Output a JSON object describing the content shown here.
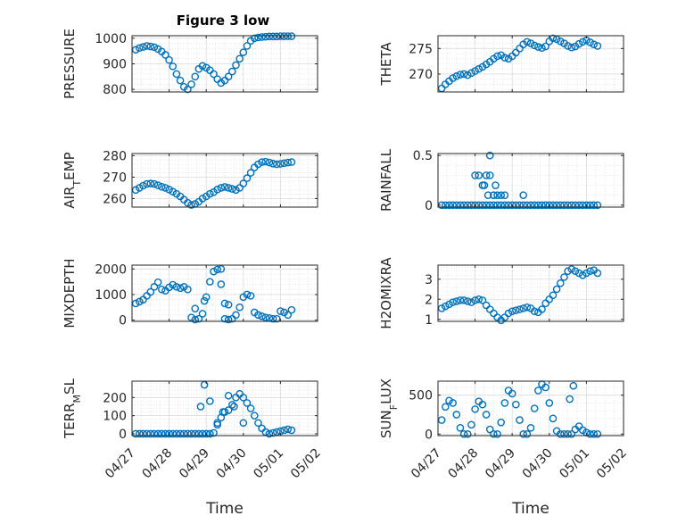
{
  "figure": {
    "title": "Figure 3 low",
    "marker_color": "#0072BD",
    "x_tick_labels": [
      "04/27",
      "04/28",
      "04/29",
      "04/30",
      "05/01",
      "05/02"
    ],
    "x_label": "Time"
  },
  "chart_data": [
    {
      "type": "scatter",
      "ylabel": "PRESSURE",
      "ylim": [
        790,
        1010
      ],
      "yticks": [
        800,
        900,
        1000
      ],
      "xlim": [
        0,
        5
      ],
      "grid": true,
      "minor_grid": true,
      "x_values_unit": "days since 04/27",
      "x": [
        0.1,
        0.2,
        0.3,
        0.4,
        0.5,
        0.6,
        0.7,
        0.8,
        0.9,
        1.0,
        1.1,
        1.2,
        1.3,
        1.4,
        1.5,
        1.6,
        1.7,
        1.8,
        1.9,
        2.0,
        2.1,
        2.2,
        2.3,
        2.4,
        2.5,
        2.6,
        2.7,
        2.8,
        2.9,
        3.0,
        3.1,
        3.2,
        3.3,
        3.4,
        3.5,
        3.6,
        3.7,
        3.8,
        3.9,
        4.0,
        4.1,
        4.2,
        4.3
      ],
      "y": [
        955,
        962,
        966,
        970,
        968,
        965,
        958,
        948,
        935,
        915,
        890,
        860,
        835,
        810,
        800,
        820,
        850,
        880,
        892,
        885,
        875,
        860,
        840,
        825,
        835,
        850,
        870,
        895,
        920,
        945,
        970,
        990,
        1000,
        1003,
        1005,
        1006,
        1007,
        1007,
        1007,
        1008,
        1008,
        1008,
        1008
      ]
    },
    {
      "type": "scatter",
      "ylabel": "THETA",
      "ylim": [
        266.5,
        277.5
      ],
      "yticks": [
        270,
        275
      ],
      "xlim": [
        0,
        5
      ],
      "grid": true,
      "minor_grid": true,
      "x": [
        0.1,
        0.2,
        0.3,
        0.4,
        0.5,
        0.6,
        0.7,
        0.8,
        0.9,
        1.0,
        1.1,
        1.2,
        1.3,
        1.4,
        1.5,
        1.6,
        1.7,
        1.8,
        1.9,
        2.0,
        2.1,
        2.2,
        2.3,
        2.4,
        2.5,
        2.6,
        2.7,
        2.8,
        2.9,
        3.0,
        3.1,
        3.2,
        3.3,
        3.4,
        3.5,
        3.6,
        3.7,
        3.8,
        3.9,
        4.0,
        4.1,
        4.2,
        4.3
      ],
      "y": [
        267.2,
        268.0,
        268.6,
        269.2,
        269.6,
        269.9,
        270.0,
        269.8,
        270.2,
        270.6,
        271.0,
        271.4,
        271.9,
        272.4,
        273.0,
        273.5,
        273.7,
        273.2,
        273.0,
        273.5,
        274.2,
        275.0,
        275.8,
        276.3,
        276.0,
        275.6,
        275.3,
        275.1,
        275.4,
        276.4,
        277.0,
        276.8,
        276.4,
        276.0,
        275.5,
        275.2,
        275.4,
        275.9,
        276.3,
        276.6,
        276.2,
        275.8,
        275.5
      ]
    },
    {
      "type": "scatter",
      "ylabel": "AIR_TEMP",
      "ylim": [
        256,
        281
      ],
      "yticks": [
        260,
        270,
        280
      ],
      "xlim": [
        0,
        5
      ],
      "grid": true,
      "minor_grid": true,
      "x": [
        0.1,
        0.2,
        0.3,
        0.4,
        0.5,
        0.6,
        0.7,
        0.8,
        0.9,
        1.0,
        1.1,
        1.2,
        1.3,
        1.4,
        1.5,
        1.6,
        1.7,
        1.8,
        1.9,
        2.0,
        2.1,
        2.2,
        2.3,
        2.4,
        2.5,
        2.6,
        2.7,
        2.8,
        2.9,
        3.0,
        3.1,
        3.2,
        3.3,
        3.4,
        3.5,
        3.6,
        3.7,
        3.8,
        3.9,
        4.0,
        4.1,
        4.2,
        4.3
      ],
      "y": [
        264,
        265,
        266,
        266.8,
        267,
        266.8,
        266.2,
        265.5,
        265,
        264.2,
        263.2,
        262.2,
        261,
        259.5,
        258,
        257,
        257.5,
        258.5,
        260,
        261,
        262.2,
        263,
        264.2,
        265,
        265.4,
        265,
        264.5,
        264,
        265,
        267,
        269.5,
        272,
        274.5,
        276,
        277,
        277.2,
        276.8,
        276.3,
        276,
        276.2,
        276.5,
        276.8,
        277
      ]
    },
    {
      "type": "scatter",
      "ylabel": "RAINFALL",
      "ylim": [
        -0.02,
        0.52
      ],
      "yticks": [
        0,
        0.5
      ],
      "xlim": [
        0,
        5
      ],
      "grid": true,
      "minor_grid": true,
      "x": [
        0.1,
        0.2,
        0.3,
        0.4,
        0.5,
        0.6,
        0.7,
        0.8,
        0.9,
        1.0,
        1.1,
        1.2,
        1.3,
        1.4,
        1.5,
        1.6,
        1.7,
        1.8,
        1.9,
        2.0,
        2.1,
        2.2,
        2.3,
        2.4,
        2.5,
        2.6,
        2.7,
        2.8,
        2.9,
        3.0,
        3.1,
        3.2,
        3.3,
        3.4,
        3.5,
        3.6,
        3.7,
        3.8,
        3.9,
        4.0,
        4.1,
        4.2,
        4.3,
        1.0,
        1.1,
        1.2,
        1.3,
        1.4,
        1.5,
        1.6,
        1.7,
        1.8,
        1.25,
        1.4,
        1.55,
        1.35,
        1.5,
        2.3
      ],
      "y": [
        0,
        0,
        0,
        0,
        0,
        0,
        0,
        0,
        0,
        0,
        0,
        0,
        0,
        0,
        0,
        0,
        0,
        0,
        0,
        0,
        0,
        0,
        0,
        0,
        0,
        0,
        0,
        0,
        0,
        0,
        0,
        0,
        0,
        0,
        0,
        0,
        0,
        0,
        0,
        0,
        0,
        0,
        0,
        0.3,
        0.3,
        0.2,
        0.3,
        0.5,
        0.1,
        0.1,
        0.1,
        0.1,
        0.2,
        0.3,
        0.2,
        0.1,
        0.1,
        0.1
      ]
    },
    {
      "type": "scatter",
      "ylabel": "MIXDEPTH",
      "ylim": [
        -50,
        2150
      ],
      "yticks": [
        0,
        1000,
        2000
      ],
      "xlim": [
        0,
        5
      ],
      "grid": true,
      "minor_grid": true,
      "x": [
        0.1,
        0.2,
        0.3,
        0.4,
        0.5,
        0.6,
        0.7,
        0.8,
        0.9,
        1.0,
        1.1,
        1.2,
        1.3,
        1.4,
        1.5,
        1.6,
        1.7,
        1.8,
        1.9,
        2.0,
        2.1,
        2.2,
        2.3,
        2.4,
        2.5,
        2.6,
        2.7,
        2.8,
        2.9,
        3.0,
        3.1,
        3.2,
        3.3,
        3.4,
        3.5,
        3.6,
        3.7,
        3.8,
        3.9,
        4.0,
        4.1,
        4.2,
        4.3,
        1.7,
        1.95,
        2.4,
        2.5,
        2.6
      ],
      "y": [
        650,
        720,
        800,
        950,
        1100,
        1300,
        1480,
        1200,
        1150,
        1280,
        1380,
        1300,
        1250,
        1300,
        1200,
        100,
        20,
        50,
        250,
        900,
        1500,
        1900,
        1980,
        2000,
        50,
        20,
        50,
        200,
        500,
        900,
        1000,
        950,
        300,
        200,
        150,
        100,
        80,
        50,
        50,
        350,
        300,
        200,
        400,
        450,
        750,
        1400,
        650,
        600
      ]
    },
    {
      "type": "scatter",
      "ylabel": "H2OMIXRA",
      "ylim": [
        0.9,
        3.7
      ],
      "yticks": [
        1,
        2,
        3
      ],
      "xlim": [
        0,
        5
      ],
      "grid": true,
      "minor_grid": true,
      "x": [
        0.1,
        0.2,
        0.3,
        0.4,
        0.5,
        0.6,
        0.7,
        0.8,
        0.9,
        1.0,
        1.1,
        1.2,
        1.3,
        1.4,
        1.5,
        1.6,
        1.7,
        1.8,
        1.9,
        2.0,
        2.1,
        2.2,
        2.3,
        2.4,
        2.5,
        2.6,
        2.7,
        2.8,
        2.9,
        3.0,
        3.1,
        3.2,
        3.3,
        3.4,
        3.5,
        3.6,
        3.7,
        3.8,
        3.9,
        4.0,
        4.1,
        4.2,
        4.3
      ],
      "y": [
        1.55,
        1.65,
        1.75,
        1.85,
        1.9,
        1.95,
        1.95,
        1.9,
        1.85,
        1.95,
        2.0,
        1.95,
        1.7,
        1.5,
        1.3,
        1.1,
        0.95,
        1.1,
        1.3,
        1.4,
        1.45,
        1.5,
        1.55,
        1.6,
        1.55,
        1.4,
        1.35,
        1.5,
        1.8,
        2.0,
        2.2,
        2.5,
        2.8,
        3.1,
        3.4,
        3.5,
        3.4,
        3.3,
        3.2,
        3.3,
        3.4,
        3.45,
        3.3
      ]
    },
    {
      "type": "scatter",
      "ylabel": "TERR_MSL",
      "ylim": [
        -10,
        290
      ],
      "yticks": [
        0,
        100,
        200
      ],
      "xlim": [
        0,
        5
      ],
      "grid": true,
      "minor_grid": true,
      "x": [
        0.1,
        0.2,
        0.3,
        0.4,
        0.5,
        0.6,
        0.7,
        0.8,
        0.9,
        1.0,
        1.1,
        1.2,
        1.3,
        1.4,
        1.5,
        1.6,
        1.7,
        1.8,
        1.9,
        2.0,
        2.1,
        2.2,
        2.3,
        2.4,
        2.5,
        2.6,
        2.7,
        2.8,
        2.9,
        3.0,
        3.1,
        3.2,
        3.3,
        3.4,
        3.5,
        3.6,
        3.7,
        3.8,
        3.9,
        4.0,
        4.1,
        4.2,
        4.3,
        1.85,
        1.95,
        2.1,
        2.3,
        2.45,
        2.6,
        2.75,
        3.0
      ],
      "y": [
        0,
        0,
        0,
        0,
        0,
        0,
        0,
        0,
        0,
        0,
        0,
        0,
        0,
        0,
        0,
        0,
        0,
        0,
        0,
        0,
        0,
        5,
        50,
        90,
        120,
        130,
        160,
        200,
        220,
        200,
        170,
        140,
        100,
        60,
        30,
        10,
        0,
        5,
        10,
        15,
        20,
        25,
        20,
        150,
        270,
        180,
        60,
        120,
        210,
        150,
        60
      ]
    },
    {
      "type": "scatter",
      "ylabel": "SUN_FLUX",
      "ylim": [
        -20,
        680
      ],
      "yticks": [
        0,
        500
      ],
      "xlim": [
        0,
        5
      ],
      "grid": true,
      "minor_grid": true,
      "x": [
        0.1,
        0.2,
        0.3,
        0.4,
        0.5,
        0.6,
        0.7,
        0.8,
        0.9,
        1.0,
        1.1,
        1.2,
        1.3,
        1.4,
        1.5,
        1.6,
        1.7,
        1.8,
        1.9,
        2.0,
        2.1,
        2.2,
        2.3,
        2.4,
        2.5,
        2.6,
        2.7,
        2.8,
        2.9,
        3.0,
        3.1,
        3.2,
        3.3,
        3.4,
        3.5,
        3.6,
        3.7,
        3.8,
        3.9,
        4.0,
        4.1,
        4.2,
        4.3,
        3.55,
        3.65
      ],
      "y": [
        180,
        350,
        430,
        400,
        250,
        80,
        0,
        0,
        120,
        320,
        420,
        380,
        250,
        60,
        0,
        0,
        150,
        400,
        560,
        520,
        380,
        180,
        0,
        0,
        80,
        330,
        560,
        640,
        600,
        400,
        200,
        40,
        0,
        0,
        0,
        0,
        60,
        100,
        50,
        20,
        0,
        0,
        0,
        450,
        620
      ]
    }
  ]
}
